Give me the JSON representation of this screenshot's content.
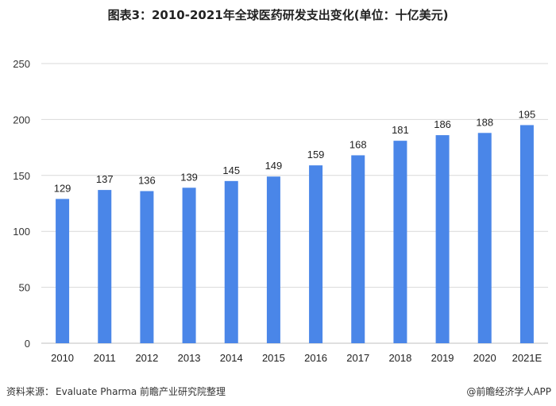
{
  "chart_data": {
    "type": "bar",
    "title": "图表3：2010-2021年全球医药研发支出变化(单位：十亿美元)",
    "categories": [
      "2010",
      "2011",
      "2012",
      "2013",
      "2014",
      "2015",
      "2016",
      "2017",
      "2018",
      "2019",
      "2020",
      "2021E"
    ],
    "values": [
      129,
      137,
      136,
      139,
      145,
      149,
      159,
      168,
      181,
      186,
      188,
      195
    ],
    "ylim": [
      0,
      250
    ],
    "yticks": [
      0,
      50,
      100,
      150,
      200,
      250
    ],
    "grid": true,
    "bar_color": "#4a86e8",
    "grid_color": "#d9d9d9"
  },
  "footer": {
    "source_label": "资料来源：",
    "source_text": "Evaluate Pharma 前瞻产业研究院整理",
    "credit": "@前瞻经济学人APP"
  }
}
